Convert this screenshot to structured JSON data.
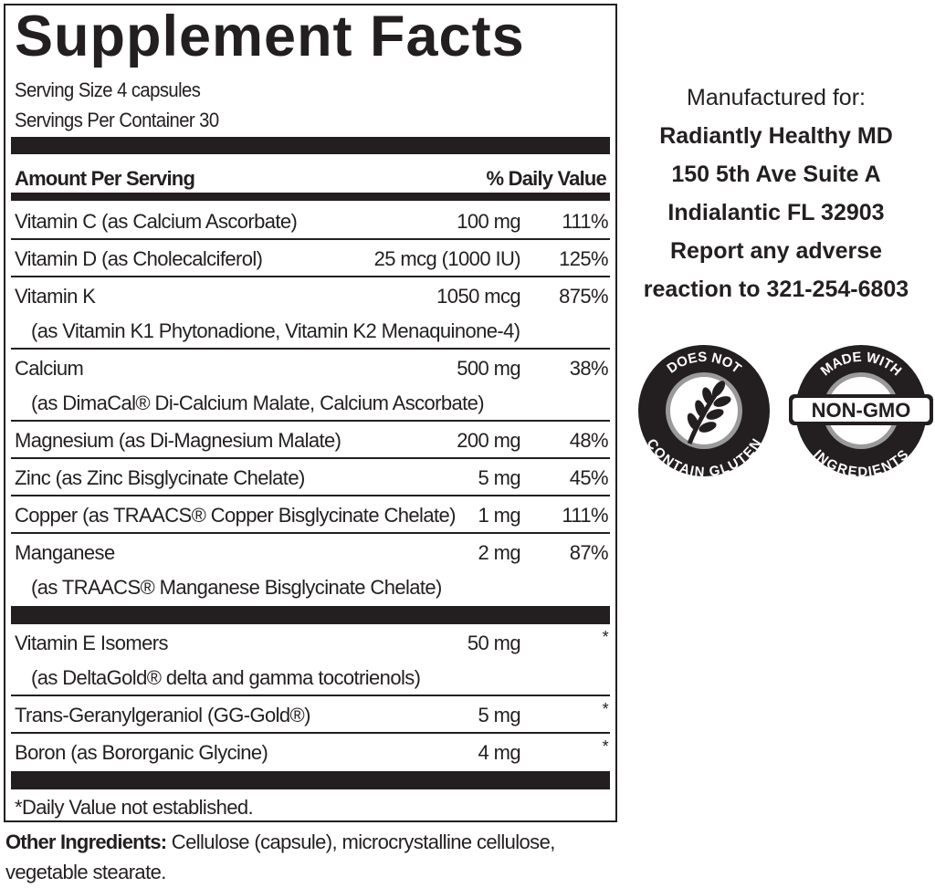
{
  "title": "Supplement Facts",
  "serving_size": "Serving Size 4 capsules",
  "servings_per_container": "Servings Per Container 30",
  "header": {
    "amount": "Amount Per Serving",
    "dv": "% Daily Value"
  },
  "rows": [
    {
      "name": "Vitamin C (as Calcium Ascorbate)",
      "amount": "100 mg",
      "dv": "111%"
    },
    {
      "name": "Vitamin D (as Cholecalciferol)",
      "amount": "25 mcg (1000 IU)",
      "dv": "125%"
    },
    {
      "name": "Vitamin K",
      "amount": "1050 mcg",
      "dv": "875%",
      "sub": "(as Vitamin K1 Phytonadione, Vitamin K2 Menaquinone-4)"
    },
    {
      "name": "Calcium",
      "amount": "500 mg",
      "dv": "38%",
      "sub": "(as DimaCal® Di-Calcium Malate, Calcium Ascorbate)"
    },
    {
      "name": "Magnesium (as Di-Magnesium Malate)",
      "amount": "200 mg",
      "dv": "48%"
    },
    {
      "name": "Zinc (as Zinc Bisglycinate Chelate)",
      "amount": "5 mg",
      "dv": "45%"
    },
    {
      "name": "Copper (as TRAACS® Copper Bisglycinate Chelate)",
      "amount": "1 mg",
      "dv": "111%"
    },
    {
      "name": "Manganese",
      "amount": "2 mg",
      "dv": "87%",
      "sub": "(as TRAACS® Manganese Bisglycinate Chelate)",
      "thick_after": true
    },
    {
      "name": "Vitamin E Isomers",
      "amount": "50 mg",
      "dv": "*",
      "sub": "(as DeltaGold® delta and gamma tocotrienols)"
    },
    {
      "name": "Trans-Geranylgeraniol (GG-Gold®)",
      "amount": "5 mg",
      "dv": "*"
    },
    {
      "name": "Boron (as Bororganic Glycine)",
      "amount": "4 mg",
      "dv": "*"
    }
  ],
  "footnote": "*Daily Value not established.",
  "other_ingredients": {
    "label": "Other Ingredients:",
    "text": " Cellulose (capsule), microcrystalline cellulose, vegetable stearate."
  },
  "manufacturer": {
    "intro": "Manufactured for:",
    "lines": [
      "Radiantly Healthy MD",
      "150 5th Ave Suite A",
      "Indialantic FL 32903",
      "Report any adverse",
      "reaction to 321-254-6803"
    ]
  },
  "badges": {
    "gluten": {
      "top": "DOES NOT",
      "bottom": "CONTAIN GLUTEN",
      "icon": "wheat-icon"
    },
    "gmo": {
      "top": "MADE WITH",
      "center": "NON-GMO",
      "bottom": "INGREDIENTS"
    }
  }
}
